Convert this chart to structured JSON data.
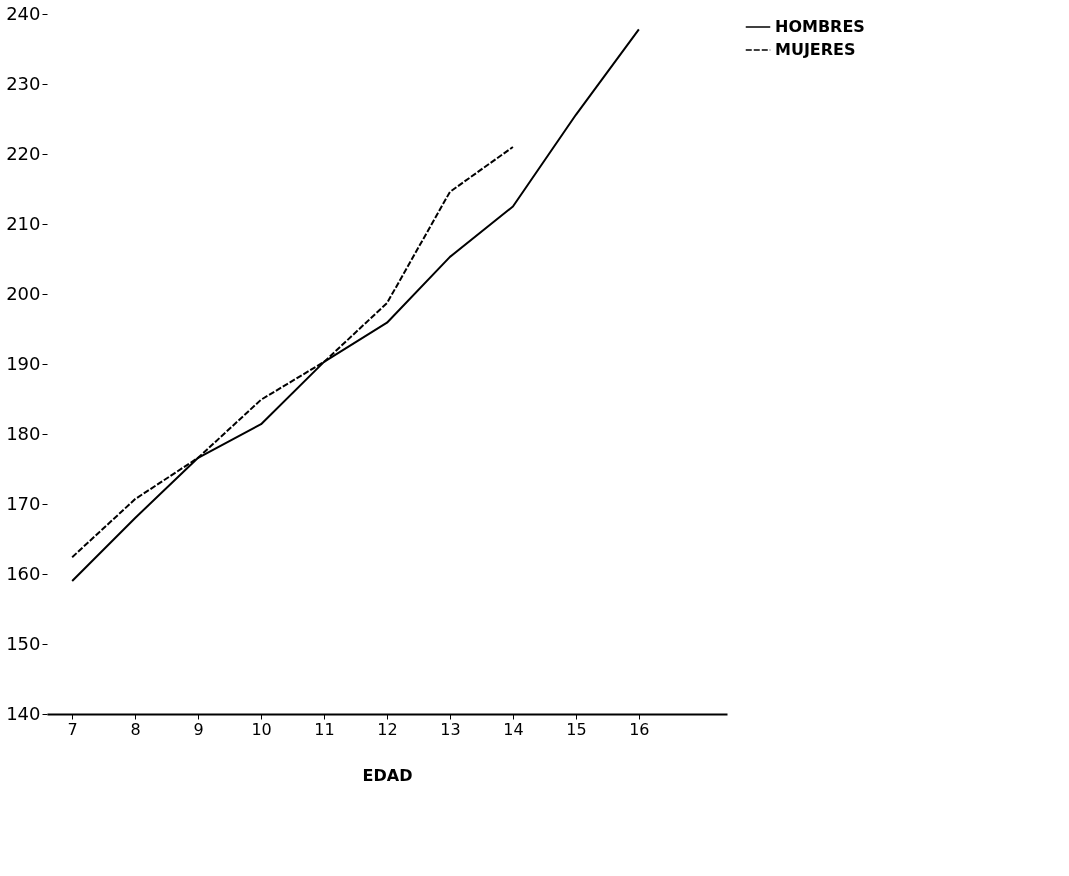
{
  "chart_data": {
    "type": "line",
    "xlabel": "EDAD",
    "x": [
      7,
      8,
      9,
      10,
      11,
      12,
      13,
      14,
      15,
      16
    ],
    "series": [
      {
        "name": "HOMBRES",
        "color": "#000000",
        "line_style": "solid",
        "values": [
          159,
          168,
          176.6,
          181.4,
          190.3,
          195.9,
          205.3,
          212.5,
          225.6,
          237.8
        ]
      },
      {
        "name": "MUJERES",
        "color": "#000000",
        "line_style": "dashed",
        "values": [
          162.4,
          170.7,
          176.6,
          184.9,
          190.3,
          198.7,
          214.6,
          221,
          null,
          null
        ]
      }
    ],
    "xlim": [
      6.6,
      17.4
    ],
    "xticks": [
      7,
      8,
      9,
      10,
      11,
      12,
      13,
      14,
      15,
      16
    ],
    "ylim": [
      140,
      240
    ],
    "yticks": [
      140,
      150,
      160,
      170,
      180,
      190,
      200,
      210,
      220,
      230,
      240
    ],
    "grid": false,
    "legend": "right",
    "marker": "none"
  }
}
